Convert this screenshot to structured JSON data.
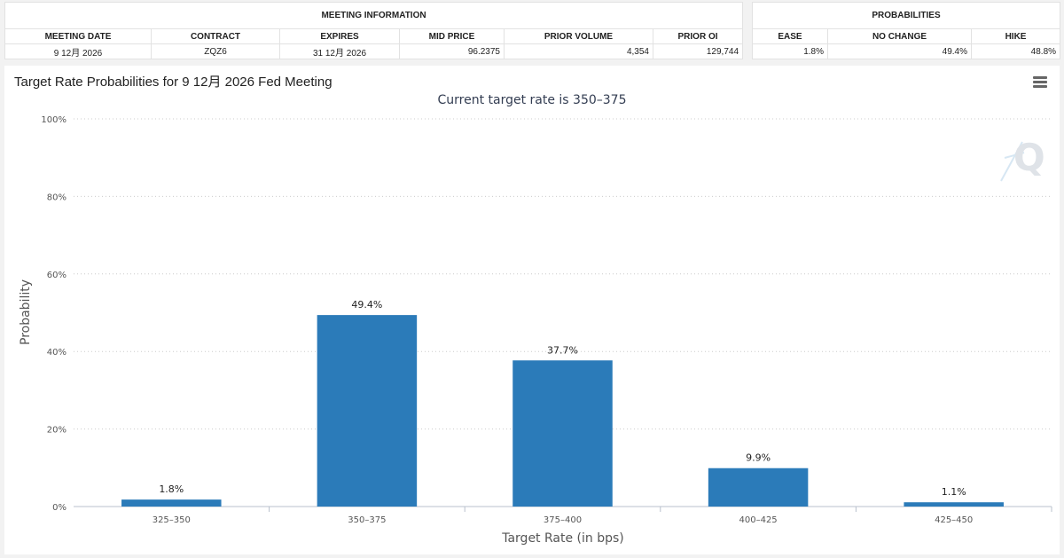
{
  "meeting_info": {
    "title": "MEETING INFORMATION",
    "headers": [
      "MEETING DATE",
      "CONTRACT",
      "EXPIRES",
      "MID PRICE",
      "PRIOR VOLUME",
      "PRIOR OI"
    ],
    "row": [
      "9 12月 2026",
      "ZQZ6",
      "31 12月 2026",
      "96.2375",
      "4,354",
      "129,744"
    ]
  },
  "probabilities": {
    "title": "PROBABILITIES",
    "headers": [
      "EASE",
      "NO CHANGE",
      "HIKE"
    ],
    "row": [
      "1.8%",
      "49.4%",
      "48.8%"
    ]
  },
  "chart_data": {
    "type": "bar",
    "title": "Target Rate Probabilities for 9 12月 2026 Fed Meeting",
    "subtitle": "Current target rate is 350–375",
    "xlabel": "Target Rate (in bps)",
    "ylabel": "Probability",
    "categories": [
      "325–350",
      "350–375",
      "375–400",
      "400–425",
      "425–450"
    ],
    "values": [
      1.8,
      49.4,
      37.7,
      9.9,
      1.1
    ],
    "data_labels": [
      "1.8%",
      "49.4%",
      "37.7%",
      "9.9%",
      "1.1%"
    ],
    "ylim": [
      0,
      100
    ],
    "yticks": [
      0,
      20,
      40,
      60,
      80,
      100
    ],
    "ytick_labels": [
      "0%",
      "20%",
      "40%",
      "60%",
      "80%",
      "100%"
    ],
    "grid": true,
    "legend": "none",
    "bar_color": "#2b7bb9"
  },
  "watermark": "Q",
  "icons": {
    "menu": "hamburger-menu-icon"
  }
}
